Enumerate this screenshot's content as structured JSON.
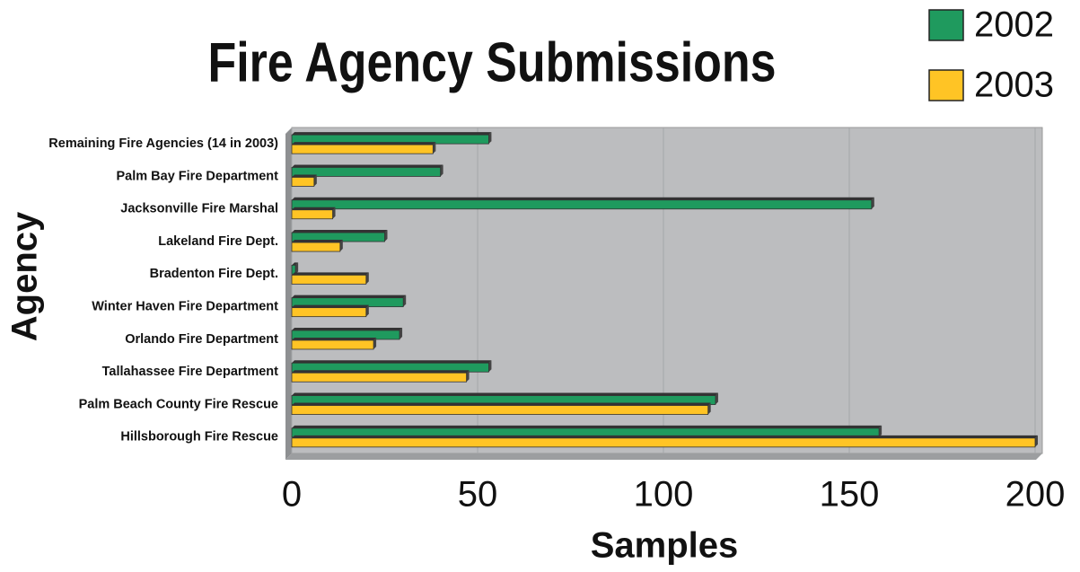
{
  "chart_data": {
    "type": "bar",
    "orientation": "horizontal",
    "title": "Fire Agency Submissions",
    "x_label": "Samples",
    "y_label": "Agency",
    "categories": [
      "Remaining Fire Agencies (14 in 2003)",
      "Palm Bay Fire Department",
      "Jacksonville Fire Marshal",
      "Lakeland Fire Dept.",
      "Bradenton Fire Dept.",
      "Winter Haven Fire Department",
      "Orlando Fire Department",
      "Tallahassee Fire Department",
      "Palm Beach County Fire Rescue",
      "Hillsborough Fire Rescue"
    ],
    "series": [
      {
        "name": "2002",
        "color": "#1f9a5e",
        "values": [
          53,
          40,
          156,
          25,
          1,
          30,
          29,
          53,
          114,
          158
        ]
      },
      {
        "name": "2003",
        "color": "#ffc425",
        "values": [
          38,
          6,
          11,
          13,
          20,
          20,
          22,
          47,
          112,
          200
        ]
      }
    ],
    "xlim": [
      0,
      200
    ],
    "xticks": [
      0,
      50,
      100,
      150,
      200
    ],
    "grid": true,
    "legend": "top-right"
  }
}
